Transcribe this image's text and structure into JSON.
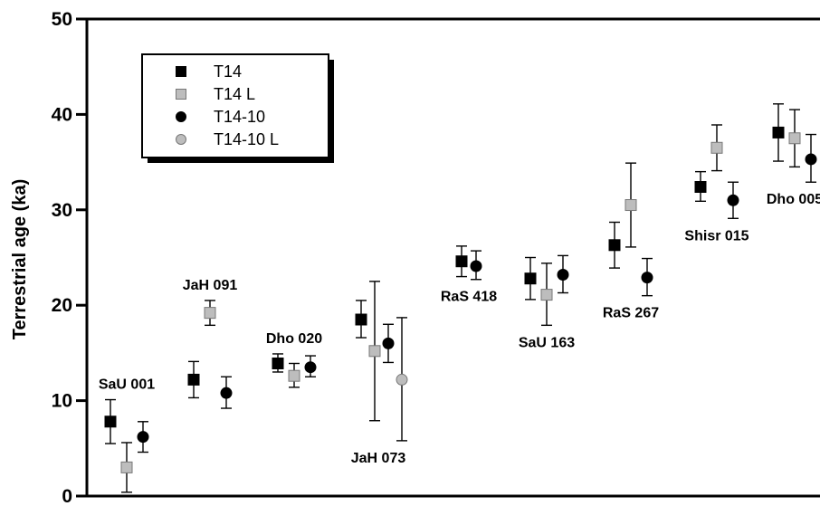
{
  "chart_data": {
    "type": "scatter",
    "ylabel": "Terrestrial age (ka)",
    "ylim": [
      0,
      50
    ],
    "yticks": [
      0,
      10,
      20,
      30,
      40,
      50
    ],
    "error_bars": true,
    "grid": false,
    "legend_position": "top-left",
    "legend": [
      {
        "name": "T14",
        "marker": "square",
        "color": "#000000"
      },
      {
        "name": "T14 L",
        "marker": "square",
        "color": "#bdbdbd"
      },
      {
        "name": "T14-10",
        "marker": "circle",
        "color": "#000000"
      },
      {
        "name": "T14-10 L",
        "marker": "circle",
        "color": "#bdbdbd"
      }
    ],
    "groups": [
      {
        "label": "SaU 001",
        "label_pos": "above",
        "points": [
          {
            "series": "T14",
            "y": 7.8,
            "err": [
              5.5,
              10.1
            ]
          },
          {
            "series": "T14 L",
            "y": 3.0,
            "err": [
              0.4,
              5.6
            ]
          },
          {
            "series": "T14-10",
            "y": 6.2,
            "err": [
              4.6,
              7.8
            ]
          }
        ]
      },
      {
        "label": "JaH 091",
        "label_pos": "above",
        "points": [
          {
            "series": "T14",
            "y": 12.2,
            "err": [
              10.3,
              14.1
            ]
          },
          {
            "series": "T14 L",
            "y": 19.2,
            "err": [
              17.9,
              20.5
            ]
          },
          {
            "series": "T14-10",
            "y": 10.8,
            "err": [
              9.2,
              12.5
            ]
          }
        ]
      },
      {
        "label": "Dho 020",
        "label_pos": "above",
        "points": [
          {
            "series": "T14",
            "y": 13.9,
            "err": [
              13.0,
              14.9
            ]
          },
          {
            "series": "T14 L",
            "y": 12.6,
            "err": [
              11.4,
              13.9
            ]
          },
          {
            "series": "T14-10",
            "y": 13.5,
            "err": [
              12.5,
              14.7
            ]
          }
        ]
      },
      {
        "label": "JaH 073",
        "label_pos": "below",
        "points": [
          {
            "series": "T14",
            "y": 18.5,
            "err": [
              16.6,
              20.5
            ]
          },
          {
            "series": "T14 L",
            "y": 15.2,
            "err": [
              7.9,
              22.5
            ]
          },
          {
            "series": "T14-10",
            "y": 16.0,
            "err": [
              14.0,
              18.0
            ]
          },
          {
            "series": "T14-10 L",
            "y": 12.2,
            "err": [
              5.8,
              18.7
            ]
          }
        ]
      },
      {
        "label": "RaS 418",
        "label_pos": "below",
        "points": [
          {
            "series": "T14",
            "y": 24.6,
            "err": [
              23.0,
              26.2
            ]
          },
          {
            "series": "T14-10",
            "y": 24.1,
            "err": [
              22.7,
              25.7
            ]
          }
        ]
      },
      {
        "label": "SaU 163",
        "label_pos": "below",
        "points": [
          {
            "series": "T14",
            "y": 22.8,
            "err": [
              20.6,
              25.0
            ]
          },
          {
            "series": "T14 L",
            "y": 21.1,
            "err": [
              17.9,
              24.4
            ]
          },
          {
            "series": "T14-10",
            "y": 23.2,
            "err": [
              21.3,
              25.2
            ]
          }
        ]
      },
      {
        "label": "RaS 267",
        "label_pos": "below",
        "points": [
          {
            "series": "T14",
            "y": 26.3,
            "err": [
              23.9,
              28.7
            ]
          },
          {
            "series": "T14 L",
            "y": 30.5,
            "err": [
              26.1,
              34.9
            ]
          },
          {
            "series": "T14-10",
            "y": 22.9,
            "err": [
              21.0,
              24.9
            ]
          }
        ]
      },
      {
        "label": "Shisr 015",
        "label_pos": "below",
        "points": [
          {
            "series": "T14",
            "y": 32.4,
            "err": [
              30.9,
              34.0
            ]
          },
          {
            "series": "T14 L",
            "y": 36.5,
            "err": [
              34.1,
              38.9
            ]
          },
          {
            "series": "T14-10",
            "y": 31.0,
            "err": [
              29.1,
              32.9
            ]
          }
        ]
      },
      {
        "label": "Dho 005",
        "label_pos": "below",
        "points": [
          {
            "series": "T14",
            "y": 38.1,
            "err": [
              35.1,
              41.1
            ]
          },
          {
            "series": "T14 L",
            "y": 37.5,
            "err": [
              34.5,
              40.5
            ]
          },
          {
            "series": "T14-10",
            "y": 35.3,
            "err": [
              32.9,
              37.9
            ]
          }
        ]
      }
    ]
  }
}
